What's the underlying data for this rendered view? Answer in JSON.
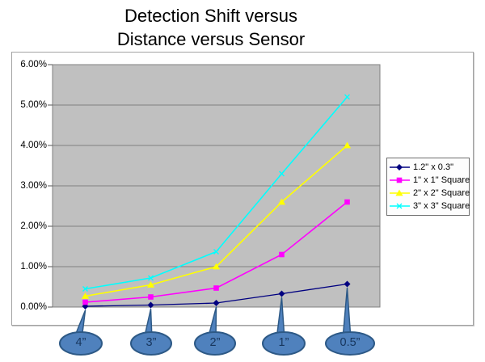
{
  "title": {
    "line1": "Detection Shift versus",
    "line2": "Distance versus Sensor"
  },
  "chart_data": {
    "type": "line",
    "title": "Detection Shift versus Distance versus Sensor",
    "unit": "percent",
    "categories": [
      "4”",
      "3”",
      "2”",
      "1”",
      "0.5”"
    ],
    "series": [
      {
        "name": "1.2\" x 0.3\"",
        "color": "#000080",
        "marker": "diamond",
        "values": [
          0.02,
          0.05,
          0.1,
          0.33,
          0.57
        ]
      },
      {
        "name": "1\" x 1\" Square",
        "color": "#FF00FF",
        "marker": "square",
        "values": [
          0.12,
          0.25,
          0.47,
          1.3,
          2.6
        ]
      },
      {
        "name": "2\" x 2\" Square",
        "color": "#FFFF00",
        "marker": "triangle",
        "values": [
          0.27,
          0.55,
          1.0,
          2.6,
          4.0
        ]
      },
      {
        "name": "3\" x 3\" Square",
        "color": "#00FFFF",
        "marker": "x",
        "values": [
          0.45,
          0.72,
          1.37,
          3.3,
          5.2
        ]
      }
    ],
    "y_tick_labels": [
      "6.00%",
      "5.00%",
      "4.00%",
      "3.00%",
      "2.00%",
      "1.00%",
      "0.00%"
    ],
    "ylim": [
      0,
      6
    ],
    "y_step": 1,
    "grid": "horizontal",
    "legend_position": "middle-right",
    "plot_bg_color": "#c0c0c0",
    "gridline_color": "#808080",
    "callout_style": {
      "fill": "#4f81bd",
      "border": "#2d5986",
      "text_color": "#17365d"
    }
  }
}
